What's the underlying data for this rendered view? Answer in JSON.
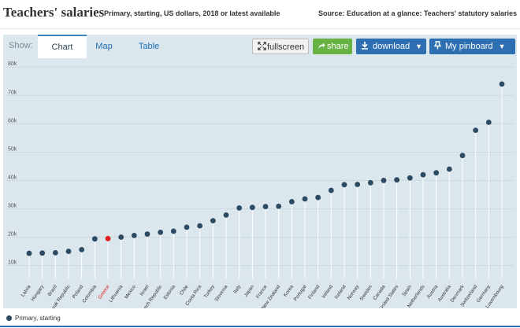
{
  "header": {
    "title": "Teachers' salaries",
    "subtitle": "Primary, starting, US dollars, 2018 or latest available",
    "source": "Source: Education at a glance: Teachers' statutory salaries"
  },
  "toolbar": {
    "show_label": "Show:",
    "tabs": [
      "Chart",
      "Map",
      "Table"
    ],
    "active_tab": "Chart",
    "fullscreen_label": "fullscreen",
    "share_label": "share",
    "download_label": "download",
    "pinboard_label": "My pinboard"
  },
  "colors": {
    "series": "#2c4a62",
    "highlight": "#e02020",
    "background": "#dbe6ed",
    "accent": "#2d6fb1",
    "share": "#67b243"
  },
  "chart_data": {
    "type": "scatter",
    "title": "Teachers' salaries",
    "xlabel": "",
    "ylabel": "",
    "ylim": [
      6000,
      82000
    ],
    "yticks": [
      "10k",
      "20k",
      "30k",
      "40k",
      "50k",
      "60k",
      "70k",
      "80k"
    ],
    "ytick_values": [
      10000,
      20000,
      30000,
      40000,
      50000,
      60000,
      70000,
      80000
    ],
    "grid": true,
    "legend_position": "bottom-left",
    "highlight": "Greece",
    "categories": [
      "Latvia",
      "Hungary",
      "Brazil",
      "Slovak Republic",
      "Poland",
      "Colombia",
      "Greece",
      "Lithuania",
      "Mexico",
      "Israel",
      "Czech Republic",
      "Estonia",
      "Chile",
      "Costa Rica",
      "Turkey",
      "Slovenia",
      "Italy",
      "Japan",
      "France",
      "New Zealand",
      "Korea",
      "Portugal",
      "Finland",
      "Ireland",
      "Iceland",
      "Norway",
      "Sweden",
      "Canada",
      "United States",
      "Spain",
      "Netherlands",
      "Austria",
      "Australia",
      "Denmark",
      "Switzerland",
      "Germany",
      "Luxembourg"
    ],
    "series": [
      {
        "name": "Primary, starting",
        "values": [
          14300,
          14400,
          14500,
          15000,
          15600,
          19400,
          19500,
          20000,
          20600,
          21100,
          21700,
          22100,
          23500,
          24000,
          25800,
          27800,
          30300,
          30500,
          30800,
          30900,
          32500,
          33500,
          34000,
          36500,
          38500,
          38600,
          39200,
          40000,
          40200,
          40900,
          42000,
          42700,
          44000,
          48800,
          57700,
          60500,
          74000
        ]
      }
    ]
  }
}
